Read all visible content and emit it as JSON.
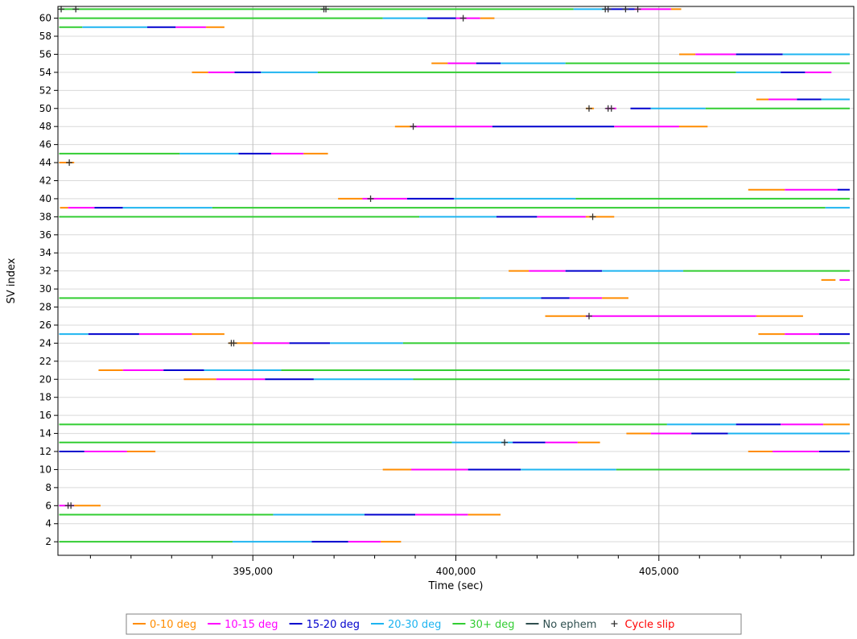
{
  "chart_data": {
    "type": "line",
    "title": "",
    "xlabel": "Time (sec)",
    "ylabel": "SV index",
    "xlim": [
      390200,
      409800
    ],
    "ylim": [
      0.5,
      61.3
    ],
    "x_ticks": [
      395000,
      400000,
      405000
    ],
    "x_tick_labels": [
      "395,000",
      "400,000",
      "405,000"
    ],
    "y_ticks": [
      2,
      4,
      6,
      8,
      10,
      12,
      14,
      16,
      18,
      20,
      22,
      24,
      26,
      28,
      30,
      32,
      34,
      36,
      38,
      40,
      42,
      44,
      46,
      48,
      50,
      52,
      54,
      56,
      58,
      60
    ],
    "grid": true,
    "legend_position": "bottom",
    "colors": {
      "0-10": "#ff8c00",
      "10-15": "#ff00ff",
      "15-20": "#0000cd",
      "20-30": "#1eb4f0",
      "30+": "#32cd32",
      "noeph": "#2f4f4f",
      "slip": "#333333"
    },
    "legend": [
      {
        "key": "0-10",
        "label": "0-10 deg",
        "marker": "line"
      },
      {
        "key": "10-15",
        "label": "10-15 deg",
        "marker": "line"
      },
      {
        "key": "15-20",
        "label": "15-20 deg",
        "marker": "line"
      },
      {
        "key": "20-30",
        "label": "20-30 deg",
        "marker": "line"
      },
      {
        "key": "30+",
        "label": "30+ deg",
        "marker": "line"
      },
      {
        "key": "noeph",
        "label": "No ephem",
        "marker": "line"
      },
      {
        "key": "slip",
        "label": "Cycle slip",
        "marker": "plus"
      }
    ],
    "series": [
      {
        "sv": 61,
        "segs": [
          [
            390230,
            402900,
            "30+"
          ],
          [
            402900,
            403700,
            "20-30"
          ],
          [
            403700,
            404400,
            "15-20"
          ],
          [
            404400,
            405300,
            "10-15"
          ],
          [
            405300,
            405550,
            "0-10"
          ]
        ]
      },
      {
        "sv": 60,
        "segs": [
          [
            390230,
            398200,
            "30+"
          ],
          [
            398200,
            399300,
            "20-30"
          ],
          [
            399300,
            400000,
            "15-20"
          ],
          [
            400000,
            400600,
            "10-15"
          ],
          [
            400600,
            400950,
            "0-10"
          ]
        ]
      },
      {
        "sv": 59,
        "segs": [
          [
            390230,
            390800,
            "30+"
          ],
          [
            390800,
            392400,
            "20-30"
          ],
          [
            392400,
            393100,
            "15-20"
          ],
          [
            393100,
            393850,
            "10-15"
          ],
          [
            393850,
            394300,
            "0-10"
          ]
        ]
      },
      {
        "sv": 56,
        "segs": [
          [
            405500,
            405900,
            "0-10"
          ],
          [
            405900,
            406900,
            "10-15"
          ],
          [
            406900,
            408050,
            "15-20"
          ],
          [
            408050,
            409700,
            "20-30"
          ]
        ]
      },
      {
        "sv": 55,
        "segs": [
          [
            399400,
            399800,
            "0-10"
          ],
          [
            399800,
            400500,
            "10-15"
          ],
          [
            400500,
            401100,
            "15-20"
          ],
          [
            401100,
            402700,
            "20-30"
          ],
          [
            402700,
            409700,
            "30+"
          ]
        ]
      },
      {
        "sv": 54,
        "segs": [
          [
            393500,
            393900,
            "0-10"
          ],
          [
            393900,
            394550,
            "10-15"
          ],
          [
            394550,
            395200,
            "15-20"
          ],
          [
            395200,
            396600,
            "20-30"
          ],
          [
            396600,
            406900,
            "30+"
          ],
          [
            406900,
            408000,
            "20-30"
          ],
          [
            408000,
            408600,
            "15-20"
          ],
          [
            408600,
            409250,
            "10-15"
          ]
        ]
      },
      {
        "sv": 51,
        "segs": [
          [
            407400,
            407700,
            "0-10"
          ],
          [
            407700,
            408400,
            "10-15"
          ],
          [
            408400,
            409000,
            "15-20"
          ],
          [
            409000,
            409700,
            "20-30"
          ]
        ]
      },
      {
        "sv": 50,
        "segs": [
          [
            403200,
            403400,
            "0-10"
          ],
          [
            403700,
            403950,
            "10-15"
          ],
          [
            404300,
            404800,
            "15-20"
          ],
          [
            404800,
            406150,
            "20-30"
          ],
          [
            406150,
            409700,
            "30+"
          ]
        ]
      },
      {
        "sv": 48,
        "segs": [
          [
            398500,
            398900,
            "0-10"
          ],
          [
            398900,
            400900,
            "10-15"
          ],
          [
            400900,
            403900,
            "15-20"
          ],
          [
            403900,
            405500,
            "10-15"
          ],
          [
            405500,
            406200,
            "0-10"
          ]
        ]
      },
      {
        "sv": 45,
        "segs": [
          [
            390230,
            393200,
            "30+"
          ],
          [
            393200,
            394650,
            "20-30"
          ],
          [
            394650,
            395450,
            "15-20"
          ],
          [
            395450,
            396250,
            "10-15"
          ],
          [
            396250,
            396850,
            "0-10"
          ]
        ]
      },
      {
        "sv": 44,
        "segs": [
          [
            390230,
            390600,
            "0-10"
          ]
        ]
      },
      {
        "sv": 41,
        "segs": [
          [
            407200,
            408100,
            "0-10"
          ],
          [
            408100,
            409400,
            "10-15"
          ],
          [
            409400,
            409700,
            "15-20"
          ]
        ]
      },
      {
        "sv": 40,
        "segs": [
          [
            397100,
            397700,
            "0-10"
          ],
          [
            397700,
            398800,
            "10-15"
          ],
          [
            398800,
            399950,
            "15-20"
          ],
          [
            399950,
            402950,
            "20-30"
          ],
          [
            402950,
            409700,
            "30+"
          ]
        ]
      },
      {
        "sv": 39,
        "segs": [
          [
            390250,
            390450,
            "0-10"
          ],
          [
            390450,
            391100,
            "10-15"
          ],
          [
            391100,
            391800,
            "15-20"
          ],
          [
            391800,
            394000,
            "20-30"
          ],
          [
            394000,
            409100,
            "30+"
          ],
          [
            409100,
            409700,
            "20-30"
          ]
        ]
      },
      {
        "sv": 38,
        "segs": [
          [
            390230,
            399100,
            "30+"
          ],
          [
            399100,
            401000,
            "20-30"
          ],
          [
            401000,
            402000,
            "15-20"
          ],
          [
            402000,
            403200,
            "10-15"
          ],
          [
            403200,
            403900,
            "0-10"
          ]
        ]
      },
      {
        "sv": 32,
        "segs": [
          [
            401300,
            401800,
            "0-10"
          ],
          [
            401800,
            402700,
            "10-15"
          ],
          [
            402700,
            403600,
            "15-20"
          ],
          [
            403600,
            405600,
            "20-30"
          ],
          [
            405600,
            409700,
            "30+"
          ]
        ]
      },
      {
        "sv": 31,
        "segs": [
          [
            409000,
            409350,
            "0-10"
          ],
          [
            409450,
            409700,
            "10-15"
          ]
        ]
      },
      {
        "sv": 29,
        "segs": [
          [
            390230,
            400600,
            "30+"
          ],
          [
            400600,
            402100,
            "20-30"
          ],
          [
            402100,
            402800,
            "15-20"
          ],
          [
            402800,
            403600,
            "10-15"
          ],
          [
            403600,
            404250,
            "0-10"
          ]
        ]
      },
      {
        "sv": 27,
        "segs": [
          [
            402200,
            403200,
            "0-10"
          ],
          [
            403200,
            407400,
            "10-15"
          ],
          [
            407400,
            408550,
            "0-10"
          ]
        ]
      },
      {
        "sv": 25,
        "segs": [
          [
            390230,
            390950,
            "20-30"
          ],
          [
            390950,
            392200,
            "15-20"
          ],
          [
            392200,
            393500,
            "10-15"
          ],
          [
            393500,
            394300,
            "0-10"
          ],
          [
            407450,
            408100,
            "0-10"
          ],
          [
            408100,
            408950,
            "10-15"
          ],
          [
            408950,
            409700,
            "15-20"
          ]
        ]
      },
      {
        "sv": 24,
        "segs": [
          [
            394400,
            395000,
            "0-10"
          ],
          [
            395000,
            395900,
            "10-15"
          ],
          [
            395900,
            396900,
            "15-20"
          ],
          [
            396900,
            398700,
            "20-30"
          ],
          [
            398700,
            409700,
            "30+"
          ]
        ]
      },
      {
        "sv": 21,
        "segs": [
          [
            391200,
            391800,
            "0-10"
          ],
          [
            391800,
            392800,
            "10-15"
          ],
          [
            392800,
            393800,
            "15-20"
          ],
          [
            393800,
            395700,
            "20-30"
          ],
          [
            395700,
            409700,
            "30+"
          ]
        ]
      },
      {
        "sv": 20,
        "segs": [
          [
            393300,
            394100,
            "0-10"
          ],
          [
            394100,
            395300,
            "10-15"
          ],
          [
            395300,
            396500,
            "15-20"
          ],
          [
            396500,
            398950,
            "20-30"
          ],
          [
            398950,
            409700,
            "30+"
          ]
        ]
      },
      {
        "sv": 15,
        "segs": [
          [
            390230,
            405200,
            "30+"
          ],
          [
            405200,
            406900,
            "20-30"
          ],
          [
            406900,
            408000,
            "15-20"
          ],
          [
            408000,
            409050,
            "10-15"
          ],
          [
            409050,
            409700,
            "0-10"
          ]
        ]
      },
      {
        "sv": 14,
        "segs": [
          [
            404200,
            404800,
            "0-10"
          ],
          [
            404800,
            405800,
            "10-15"
          ],
          [
            405800,
            406700,
            "15-20"
          ],
          [
            406700,
            409700,
            "20-30"
          ]
        ]
      },
      {
        "sv": 13,
        "segs": [
          [
            390230,
            399900,
            "30+"
          ],
          [
            399900,
            401400,
            "20-30"
          ],
          [
            401400,
            402200,
            "15-20"
          ],
          [
            402200,
            403000,
            "10-15"
          ],
          [
            403000,
            403550,
            "0-10"
          ]
        ]
      },
      {
        "sv": 12,
        "segs": [
          [
            390230,
            390850,
            "15-20"
          ],
          [
            390850,
            391900,
            "10-15"
          ],
          [
            391900,
            392600,
            "0-10"
          ],
          [
            407200,
            407800,
            "0-10"
          ],
          [
            407800,
            408950,
            "10-15"
          ],
          [
            408950,
            409700,
            "15-20"
          ]
        ]
      },
      {
        "sv": 10,
        "segs": [
          [
            398200,
            398900,
            "0-10"
          ],
          [
            398900,
            400300,
            "10-15"
          ],
          [
            400300,
            401600,
            "15-20"
          ],
          [
            401600,
            403950,
            "20-30"
          ],
          [
            403950,
            409700,
            "30+"
          ]
        ]
      },
      {
        "sv": 6,
        "segs": [
          [
            390230,
            390600,
            "10-15"
          ],
          [
            390600,
            391250,
            "0-10"
          ]
        ]
      },
      {
        "sv": 5,
        "segs": [
          [
            390230,
            395500,
            "30+"
          ],
          [
            395500,
            397750,
            "20-30"
          ],
          [
            397750,
            399000,
            "15-20"
          ],
          [
            399000,
            400300,
            "10-15"
          ],
          [
            400300,
            401100,
            "0-10"
          ]
        ]
      },
      {
        "sv": 2,
        "segs": [
          [
            390230,
            394500,
            "30+"
          ],
          [
            394500,
            396450,
            "20-30"
          ],
          [
            396450,
            397350,
            "15-20"
          ],
          [
            397350,
            398150,
            "10-15"
          ],
          [
            398150,
            398650,
            "0-10"
          ]
        ]
      }
    ],
    "cycle_slips": [
      [
        390280,
        61
      ],
      [
        390640,
        61
      ],
      [
        396750,
        61
      ],
      [
        396800,
        61
      ],
      [
        403680,
        61
      ],
      [
        403750,
        61
      ],
      [
        404180,
        61
      ],
      [
        404480,
        61
      ],
      [
        400180,
        60
      ],
      [
        403280,
        50
      ],
      [
        403750,
        50
      ],
      [
        403830,
        50
      ],
      [
        398950,
        48
      ],
      [
        390480,
        44
      ],
      [
        397900,
        40
      ],
      [
        403370,
        38
      ],
      [
        403280,
        27
      ],
      [
        394470,
        24
      ],
      [
        394530,
        24
      ],
      [
        401200,
        13
      ],
      [
        390450,
        6
      ],
      [
        390520,
        6
      ]
    ]
  }
}
